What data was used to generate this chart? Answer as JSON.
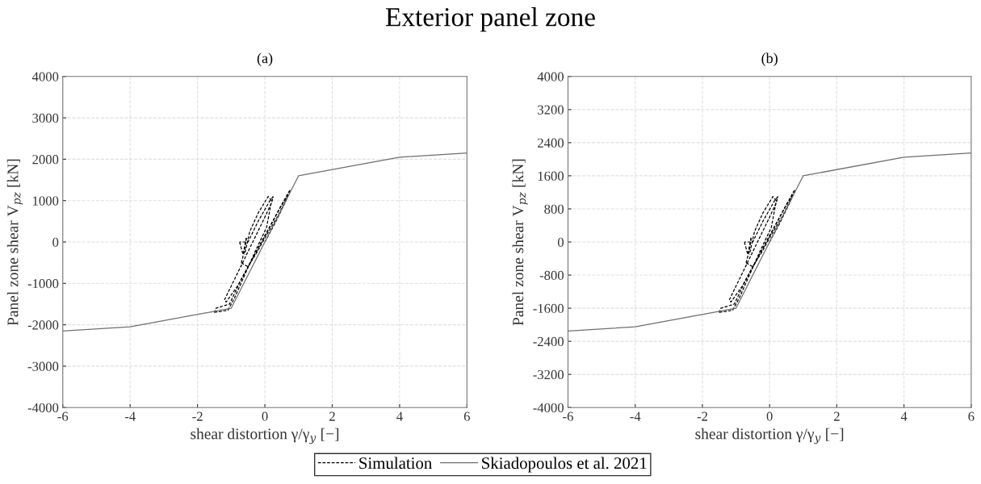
{
  "chart_data": [
    {
      "type": "line",
      "title": "Exterior panel zone",
      "subtitle": "(a)",
      "xlabel": "shear distortion γ/γ$_{y}$ [−]",
      "ylabel": "Panel zone shear V$_{pz}$ [kN]",
      "xlim": [
        -6,
        6
      ],
      "xticks": [
        -6,
        -4,
        -2,
        0,
        2,
        4,
        6
      ],
      "ylim": [
        -4000,
        4000
      ],
      "yticks": [
        -4000,
        -3000,
        -2000,
        -1000,
        0,
        1000,
        2000,
        3000,
        4000
      ],
      "grid": true,
      "legend": "bottom",
      "series": [
        {
          "name": "Simulation",
          "color": "#000000",
          "line_style": "dashed",
          "x": [
            0,
            0.3,
            0.6,
            0.75
          ],
          "values": [
            0,
            450,
            950,
            1250
          ]
        },
        {
          "color": "#000000",
          "line_style": "dashed",
          "x": [
            0.75,
            0.7,
            0.4,
            0.0,
            -0.4,
            -0.8,
            -1.15,
            -1.2
          ],
          "values": [
            1250,
            1200,
            750,
            150,
            -450,
            -1050,
            -1450,
            -1400
          ]
        },
        {
          "color": "#000000",
          "line_style": "dashed",
          "x": [
            -1.2,
            -0.9,
            -0.6,
            -0.3,
            0.0,
            0.2,
            0.25
          ],
          "values": [
            -1400,
            -900,
            -400,
            100,
            600,
            950,
            1100
          ]
        },
        {
          "color": "#000000",
          "line_style": "dashed",
          "x": [
            0.25,
            0.15,
            -0.2,
            -0.5,
            -0.75
          ],
          "values": [
            1100,
            1000,
            500,
            0,
            0
          ]
        },
        {
          "color": "#000000",
          "line_style": "dashed",
          "x": [
            -0.75,
            -0.65,
            -0.55
          ],
          "values": [
            0,
            -300,
            100
          ]
        },
        {
          "color": "#000000",
          "line_style": "dashed",
          "x": [
            -0.55,
            -0.6,
            -0.7
          ],
          "values": [
            100,
            -200,
            -500
          ]
        },
        {
          "color": "#000000",
          "line_style": "dashed",
          "x": [
            -0.7,
            -0.5,
            -0.2,
            0.0,
            0.4,
            0.7
          ],
          "values": [
            -500,
            -600,
            -200,
            100,
            650,
            1150
          ]
        },
        {
          "color": "#000000",
          "line_style": "dashed",
          "x": [
            0.7,
            0.5,
            0.1,
            -0.3,
            -0.7,
            -1.05,
            -1.45,
            -1.5
          ],
          "values": [
            1150,
            900,
            300,
            -300,
            -900,
            -1500,
            -1600,
            -1700
          ]
        },
        {
          "color": "#000000",
          "line_style": "dashed",
          "x": [
            -1.5,
            -1.1,
            -0.9,
            -0.6,
            -0.3,
            0.05,
            0.2
          ],
          "values": [
            -1700,
            -1650,
            -1350,
            -800,
            -250,
            350,
            1000
          ]
        },
        {
          "color": "#000000",
          "line_style": "dashed",
          "x": [
            0.2,
            0.1,
            -0.2,
            -0.45,
            -0.6
          ],
          "values": [
            1000,
            1100,
            700,
            250,
            -300
          ]
        },
        {
          "name": "Skiadopoulos et al. 2021",
          "color": "#6e6e6e",
          "line_style": "solid",
          "x": [
            -6,
            -4,
            -1,
            1,
            4,
            6
          ],
          "values": [
            -2150,
            -2050,
            -1600,
            1600,
            2050,
            2150
          ]
        }
      ]
    },
    {
      "type": "line",
      "subtitle": "(b)",
      "xlabel": "shear distortion γ/γ$_{y}$ [−]",
      "ylabel": "Panel zone shear V$_{pz}$ [kN]",
      "xlim": [
        -6,
        6
      ],
      "xticks": [
        -6,
        -4,
        -2,
        0,
        2,
        4,
        6
      ],
      "ylim": [
        -4000,
        4000
      ],
      "yticks": [
        -4000,
        -3200,
        -2400,
        -1600,
        -800,
        0,
        800,
        1600,
        2400,
        3200,
        4000
      ],
      "grid": true,
      "series": [
        {
          "color": "#000000",
          "line_style": "dashed",
          "x": [
            0,
            0.3,
            0.6,
            0.75
          ],
          "values": [
            0,
            450,
            950,
            1250
          ]
        },
        {
          "color": "#000000",
          "line_style": "dashed",
          "x": [
            0.75,
            0.7,
            0.4,
            0.0,
            -0.4,
            -0.8,
            -1.15,
            -1.2
          ],
          "values": [
            1250,
            1200,
            750,
            150,
            -450,
            -1050,
            -1450,
            -1400
          ]
        },
        {
          "color": "#000000",
          "line_style": "dashed",
          "x": [
            -1.2,
            -0.9,
            -0.6,
            -0.3,
            0.0,
            0.2,
            0.25
          ],
          "values": [
            -1400,
            -900,
            -400,
            100,
            600,
            950,
            1100
          ]
        },
        {
          "color": "#000000",
          "line_style": "dashed",
          "x": [
            0.25,
            0.15,
            -0.2,
            -0.5,
            -0.75
          ],
          "values": [
            1100,
            1000,
            500,
            0,
            0
          ]
        },
        {
          "color": "#000000",
          "line_style": "dashed",
          "x": [
            -0.75,
            -0.65,
            -0.55
          ],
          "values": [
            0,
            -300,
            100
          ]
        },
        {
          "color": "#000000",
          "line_style": "dashed",
          "x": [
            -0.55,
            -0.6,
            -0.7
          ],
          "values": [
            100,
            -200,
            -500
          ]
        },
        {
          "color": "#000000",
          "line_style": "dashed",
          "x": [
            -0.7,
            -0.5,
            -0.2,
            0.0,
            0.4,
            0.7
          ],
          "values": [
            -500,
            -600,
            -200,
            100,
            650,
            1150
          ]
        },
        {
          "color": "#000000",
          "line_style": "dashed",
          "x": [
            0.7,
            0.5,
            0.1,
            -0.3,
            -0.7,
            -1.05,
            -1.45,
            -1.5
          ],
          "values": [
            1150,
            900,
            300,
            -300,
            -900,
            -1500,
            -1600,
            -1700
          ]
        },
        {
          "color": "#000000",
          "line_style": "dashed",
          "x": [
            -1.5,
            -1.1,
            -0.9,
            -0.6,
            -0.3,
            0.05,
            0.2
          ],
          "values": [
            -1700,
            -1650,
            -1350,
            -800,
            -250,
            350,
            1000
          ]
        },
        {
          "color": "#000000",
          "line_style": "dashed",
          "x": [
            0.2,
            0.1,
            -0.2,
            -0.45,
            -0.6
          ],
          "values": [
            1000,
            1100,
            700,
            250,
            -300
          ]
        },
        {
          "color": "#6e6e6e",
          "line_style": "solid",
          "x": [
            -6,
            -4,
            -1,
            1,
            4,
            6
          ],
          "values": [
            -2150,
            -2050,
            -1600,
            1600,
            2050,
            2150
          ]
        }
      ]
    }
  ]
}
